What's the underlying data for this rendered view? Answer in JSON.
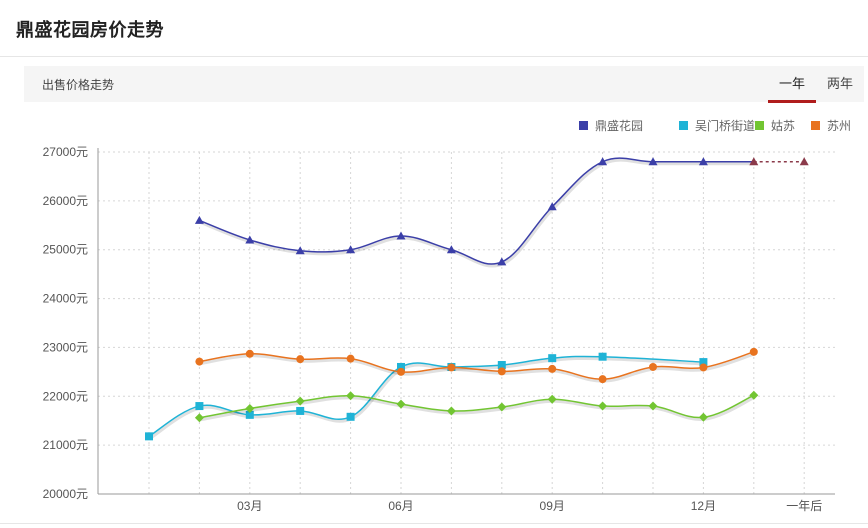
{
  "page": {
    "title": "鼎盛花园房价走势"
  },
  "subbar": {
    "label": "出售价格走势",
    "tabs": [
      {
        "label": "一年",
        "active": true
      },
      {
        "label": "两年",
        "active": false
      }
    ]
  },
  "chart_data": {
    "type": "line",
    "title": "",
    "xlabel": "",
    "ylabel": "",
    "y_unit": "元",
    "ylim": [
      20000,
      27000
    ],
    "y_ticks": [
      20000,
      21000,
      22000,
      23000,
      24000,
      25000,
      26000,
      27000
    ],
    "y_tick_labels": [
      "20000元",
      "21000元",
      "22000元",
      "23000元",
      "24000元",
      "25000元",
      "26000元",
      "27000元"
    ],
    "categories": [
      "",
      "",
      "03月",
      "",
      "",
      "06月",
      "",
      "",
      "09月",
      "",
      "",
      "12月",
      "",
      "一年后"
    ],
    "grid": true,
    "legend_position": "top-right",
    "series": [
      {
        "name": "鼎盛花园",
        "color": "#3b3fa8",
        "marker": "triangle",
        "values": [
          null,
          25600,
          25200,
          24980,
          25000,
          25280,
          25000,
          24750,
          25880,
          26800,
          26800,
          26800,
          26800,
          26800
        ],
        "forecast_from_index": 12,
        "forecast_color": "#8b3a4a"
      },
      {
        "name": "吴门桥街道",
        "color": "#1fb3d6",
        "marker": "square",
        "values": [
          21180,
          21800,
          21620,
          21700,
          21580,
          22600,
          22600,
          22640,
          22780,
          22810,
          null,
          22700,
          null,
          null
        ]
      },
      {
        "name": "姑苏",
        "color": "#72c532",
        "marker": "diamond",
        "values": [
          null,
          21560,
          21750,
          21900,
          22010,
          21840,
          21700,
          21780,
          21940,
          21800,
          21800,
          21570,
          22020,
          null
        ]
      },
      {
        "name": "苏州",
        "color": "#e8731f",
        "marker": "circle",
        "values": [
          null,
          22710,
          22870,
          22760,
          22770,
          22500,
          22590,
          22510,
          22560,
          22350,
          22600,
          22590,
          22910,
          null
        ]
      }
    ]
  }
}
